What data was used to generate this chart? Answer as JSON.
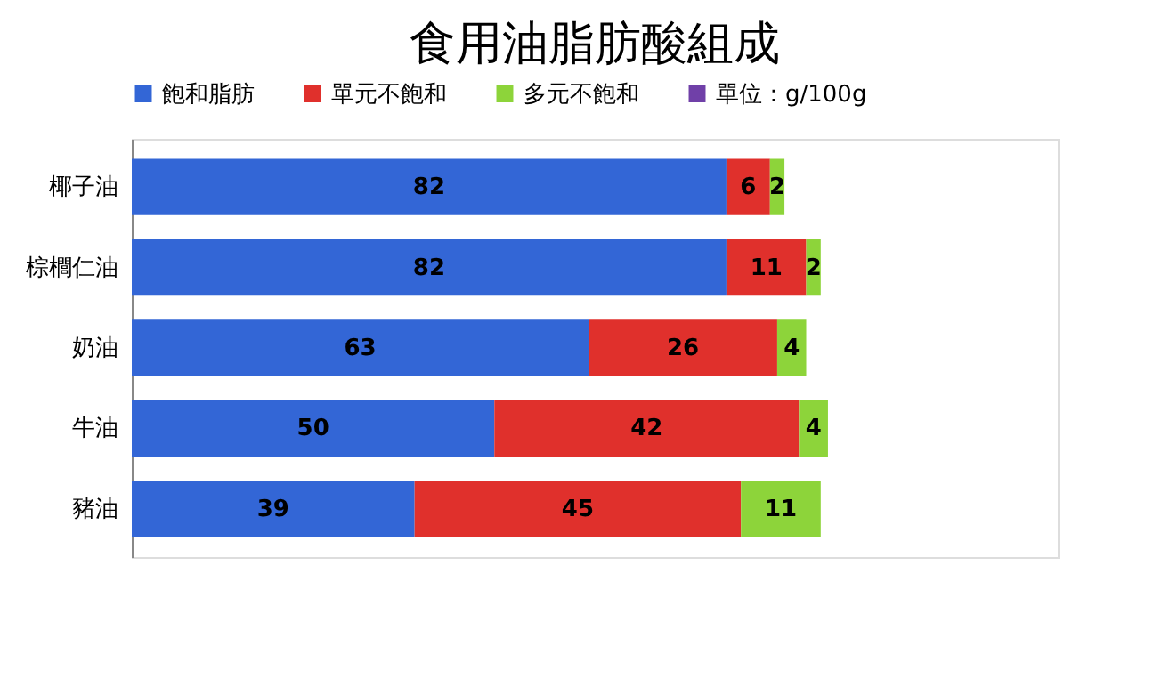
{
  "chart_data": {
    "type": "bar",
    "orientation": "horizontal",
    "stacked": true,
    "data_labels": true,
    "legend": "top",
    "title": "食用油脂肪酸組成",
    "categories": [
      "椰子油",
      "棕櫚仁油",
      "奶油",
      "牛油",
      "豬油"
    ],
    "series": [
      {
        "name": "飽和脂肪",
        "color": "#3366d6",
        "values": [
          82,
          82,
          63,
          50,
          39
        ]
      },
      {
        "name": "單元不飽和",
        "color": "#e0302c",
        "values": [
          6,
          11,
          26,
          42,
          45
        ]
      },
      {
        "name": "多元不飽和",
        "color": "#8dd43a",
        "values": [
          2,
          2,
          4,
          4,
          11
        ]
      },
      {
        "name": "單位：g/100g",
        "color": "#7040a8",
        "values": [
          null,
          null,
          null,
          null,
          null
        ]
      }
    ]
  }
}
